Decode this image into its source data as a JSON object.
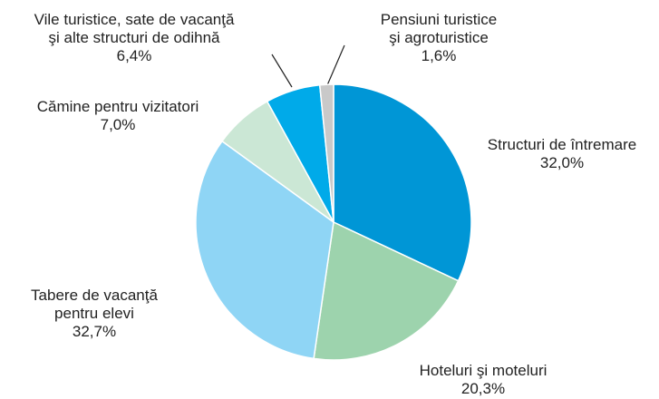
{
  "chart_data": {
    "type": "pie",
    "categories": [
      "Structuri de întremare",
      "Hoteluri şi moteluri",
      "Tabere de vacanţă\npentru elevi",
      "Cămine pentru vizitatori",
      "Vile turistice, sate de vacanţă\nşi alte structuri de odihnă",
      "Pensiuni turistice\nşi agroturistice"
    ],
    "values": [
      32.0,
      20.3,
      32.7,
      7.0,
      6.4,
      1.6
    ],
    "value_labels": [
      "32,0%",
      "20,3%",
      "32,7%",
      "7,0%",
      "6,4%",
      "1,6%"
    ],
    "colors": [
      "#0096d6",
      "#9dd3ad",
      "#8fd5f5",
      "#cbe7d5",
      "#00aae9",
      "#c9c9c9"
    ]
  }
}
